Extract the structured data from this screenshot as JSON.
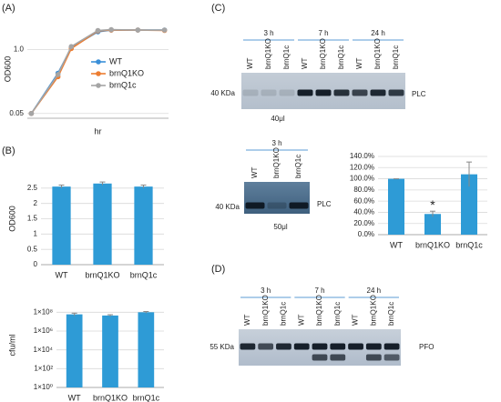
{
  "panel_labels": [
    "(A)",
    "(B)",
    "(C)",
    "(D)"
  ],
  "chart_data": [
    {
      "type": "line",
      "ylabel": "OD600",
      "xlabel": "hr",
      "log_y": true,
      "grid": true,
      "legend": "right",
      "ylim": [
        0.04,
        4
      ],
      "yticks": [
        0.05,
        {
          "value": 1,
          "label": "1.0"
        }
      ],
      "xlim": [
        -0.3,
        10.3
      ],
      "x": [
        0,
        2,
        3,
        5,
        6,
        8,
        10
      ],
      "series": [
        {
          "name": "WT",
          "color": "#3a8fd8",
          "values": [
            0.05,
            0.33,
            1.1,
            2.3,
            2.5,
            2.5,
            2.5
          ]
        },
        {
          "name": "brnQ1KO",
          "color": "#ed7d31",
          "values": [
            0.05,
            0.28,
            1.05,
            2.4,
            2.5,
            2.5,
            2.45
          ]
        },
        {
          "name": "brnQ1c",
          "color": "#a5a5a5",
          "values": [
            0.05,
            0.31,
            1.15,
            2.45,
            2.55,
            2.5,
            2.5
          ]
        }
      ]
    },
    {
      "type": "bar",
      "ylabel": "OD600",
      "grid": true,
      "color": "#2e9bd6",
      "categories": [
        "WT",
        "brnQ1KO",
        "brnQ1c"
      ],
      "values": [
        2.55,
        2.65,
        2.55
      ],
      "errors": [
        0.05,
        0.05,
        0.05
      ],
      "ylim": [
        0,
        3
      ],
      "yticks": [
        0,
        0.5,
        1,
        1.5,
        2,
        2.5
      ]
    },
    {
      "type": "bar",
      "ylabel": "cfu/ml",
      "log_y": true,
      "grid": true,
      "color": "#2e9bd6",
      "categories": [
        "WT",
        "brnQ1KO",
        "brnQ1c"
      ],
      "values": [
        60000000,
        45000000,
        100000000
      ],
      "errors": [
        20000000,
        10000000,
        20000000
      ],
      "ylim": [
        1,
        1000000000
      ],
      "yticks": [
        {
          "value": 1,
          "label": "1×10⁰"
        },
        {
          "value": 100,
          "label": "1×10²"
        },
        {
          "value": 10000,
          "label": "1×10⁴"
        },
        {
          "value": 1000000,
          "label": "1×10⁶"
        },
        {
          "value": 100000000,
          "label": "1×10⁸"
        }
      ]
    },
    {
      "type": "bar",
      "grid": true,
      "color": "#2e9bd6",
      "annotation": "*",
      "categories": [
        "WT",
        "brnQ1KO",
        "brnQ1c"
      ],
      "values": [
        100,
        37,
        108
      ],
      "errors": [
        0,
        5,
        22
      ],
      "ylim": [
        0,
        140
      ],
      "yticks": [
        {
          "value": 0,
          "label": "0.0%"
        },
        {
          "value": 20,
          "label": "20.0%"
        },
        {
          "value": 40,
          "label": "40.0%"
        },
        {
          "value": 60,
          "label": "60.0%"
        },
        {
          "value": 80,
          "label": "80.0%"
        },
        {
          "value": 100,
          "label": "100.0%"
        },
        {
          "value": 120,
          "label": "120.0%"
        },
        {
          "value": 140,
          "label": "140.0%"
        }
      ]
    }
  ],
  "blots": [
    {
      "groups": [
        "3 h",
        "7 h",
        "24 h"
      ],
      "lanes": [
        "WT",
        "brnQ1KO",
        "brnQ1c"
      ],
      "marker": "40 KDa",
      "protein": "PLC",
      "volume": "40μl"
    },
    {
      "groups": [
        "3 h"
      ],
      "lanes": [
        "WT",
        "brnQ1KO",
        "brnQ1c"
      ],
      "marker": "40 KDa",
      "protein": "PLC",
      "volume": "50μl"
    },
    {
      "groups": [
        "3 h",
        "7 h",
        "24 h"
      ],
      "lanes": [
        "WT",
        "brnQ1KO",
        "brnQ1c"
      ],
      "marker": "55 KDa",
      "protein": "PFO"
    }
  ]
}
